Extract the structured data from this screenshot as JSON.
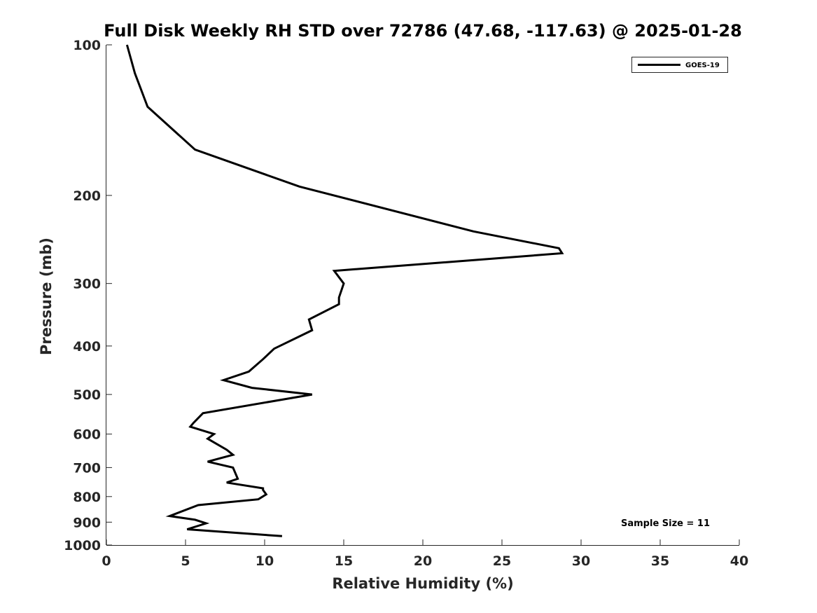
{
  "chart_data": {
    "type": "line",
    "title": "Full Disk Weekly RH STD over 72786 (47.68, -117.63) @ 2025-01-28",
    "xlabel": "Relative Humidity (%)",
    "ylabel": "Pressure (mb)",
    "xlim": [
      0,
      40
    ],
    "ylim": [
      100,
      1000
    ],
    "y_scale": "log",
    "y_inverted": true,
    "grid": false,
    "legend_position": "top-right",
    "x_ticks": [
      "0",
      "5",
      "10",
      "15",
      "20",
      "25",
      "30",
      "35",
      "40"
    ],
    "y_ticks": [
      "100",
      "200",
      "300",
      "400",
      "500",
      "600",
      "700",
      "800",
      "900",
      "1000"
    ],
    "annotation": "Sample Size = 11",
    "colors": {
      "series": "#000000",
      "axis": "#262626"
    },
    "series": [
      {
        "name": "GOES-19",
        "x": [
          1.3,
          1.8,
          2.6,
          5.6,
          12.2,
          23.2,
          28.6,
          28.8,
          14.4,
          15.0,
          14.7,
          14.7,
          12.8,
          13.0,
          10.6,
          9.9,
          9.0,
          7.4,
          9.2,
          13.0,
          6.1,
          5.5,
          5.3,
          6.8,
          6.4,
          7.6,
          8.0,
          6.4,
          8.0,
          8.3,
          7.6,
          9.9,
          9.9,
          10.1,
          9.6,
          5.8,
          4.0,
          5.6,
          6.3,
          5.1,
          11.1
        ],
        "y": [
          100,
          114,
          133,
          162,
          192,
          236,
          255,
          261,
          283,
          300,
          320,
          330,
          354,
          372,
          405,
          425,
          450,
          468,
          485,
          500,
          545,
          570,
          580,
          600,
          613,
          645,
          660,
          681,
          700,
          737,
          750,
          770,
          776,
          792,
          810,
          832,
          875,
          890,
          905,
          930,
          960
        ]
      }
    ]
  }
}
